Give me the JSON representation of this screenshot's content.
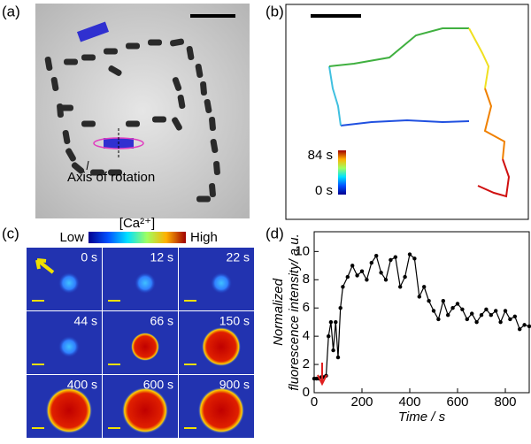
{
  "panel_a": {
    "label": "(a)",
    "annotation": "Axis of rotation"
  },
  "panel_b": {
    "label": "(b)",
    "colorbar_max": "84 s",
    "colorbar_min": "0 s"
  },
  "panel_c": {
    "label": "(c)",
    "colorbar_low": "Low",
    "colorbar_title": "[Ca²⁺]",
    "colorbar_high": "High",
    "frame_times": [
      "0 s",
      "12 s",
      "22 s",
      "44 s",
      "66 s",
      "150 s",
      "400 s",
      "600 s",
      "900 s"
    ]
  },
  "chart_data": {
    "type": "line",
    "label": "(d)",
    "x_label": "Time / s",
    "y_label": [
      "Normalized",
      "fluorescence intensity/ a.u."
    ],
    "color": "#000000",
    "x": [
      0,
      10,
      20,
      30,
      40,
      50,
      60,
      70,
      80,
      90,
      100,
      110,
      120,
      140,
      160,
      180,
      200,
      220,
      240,
      260,
      280,
      300,
      320,
      340,
      360,
      380,
      400,
      420,
      440,
      460,
      480,
      500,
      520,
      540,
      560,
      580,
      600,
      620,
      640,
      660,
      680,
      700,
      720,
      740,
      760,
      780,
      800,
      820,
      840,
      860,
      880,
      900
    ],
    "values": [
      1.0,
      1.0,
      1.0,
      1.1,
      1.1,
      1.2,
      4.0,
      5.0,
      3.0,
      5.0,
      2.5,
      6.0,
      7.5,
      8.2,
      9.0,
      8.3,
      8.6,
      8.0,
      9.2,
      9.7,
      8.5,
      8.0,
      9.4,
      9.6,
      7.5,
      8.2,
      9.8,
      9.5,
      6.8,
      7.5,
      6.5,
      5.8,
      5.2,
      6.5,
      5.5,
      6.0,
      6.3,
      5.9,
      5.2,
      5.6,
      5.0,
      5.5,
      5.9,
      5.5,
      5.8,
      5.0,
      5.8,
      5.2,
      5.4,
      4.5,
      4.8,
      4.7
    ],
    "xlim": [
      0,
      900
    ],
    "xticks": [
      0,
      200,
      400,
      600,
      800
    ],
    "ylim": [
      0,
      11.4
    ],
    "yticks": [
      0,
      2,
      4,
      6,
      8,
      10
    ]
  }
}
